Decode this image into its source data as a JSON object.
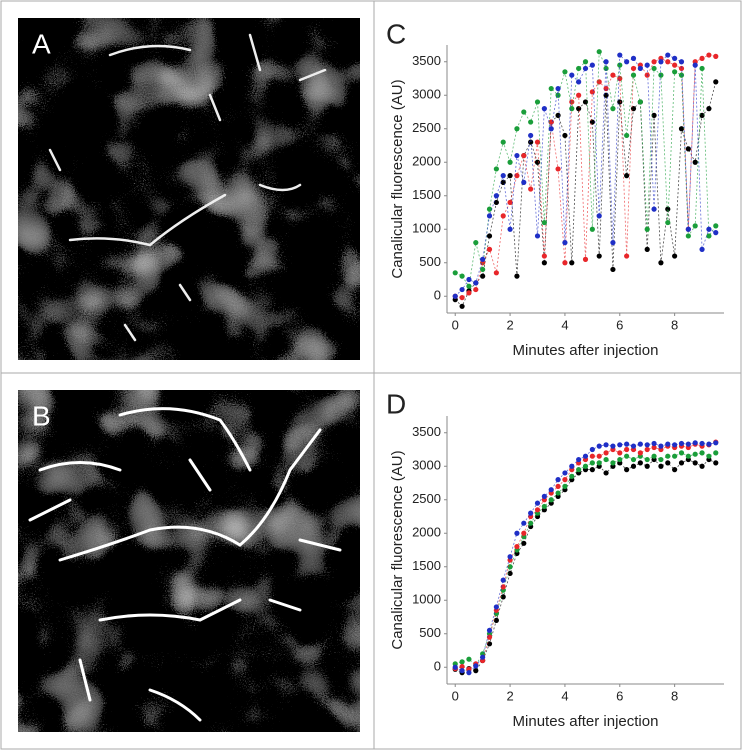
{
  "image_panels": [
    {
      "label": "A"
    },
    {
      "label": "B"
    }
  ],
  "chart_data": [
    {
      "type": "scatter",
      "label": "C",
      "xlabel": "Minutes after injection",
      "ylabel": "Canalicular fluorescence (AU)",
      "xlim": [
        -0.3,
        9.8
      ],
      "xticks": [
        0,
        2,
        4,
        6,
        8
      ],
      "ylim": [
        -250,
        3750
      ],
      "yticks": [
        0,
        500,
        1000,
        1500,
        2000,
        2500,
        3000,
        3500
      ],
      "connect_points": true,
      "x": [
        0,
        0.25,
        0.5,
        0.75,
        1,
        1.25,
        1.5,
        1.75,
        2,
        2.25,
        2.5,
        2.75,
        3,
        3.25,
        3.5,
        3.75,
        4,
        4.25,
        4.5,
        4.75,
        5,
        5.25,
        5.5,
        5.75,
        6,
        6.25,
        6.5,
        6.75,
        7,
        7.25,
        7.5,
        7.75,
        8,
        8.25,
        8.5,
        8.75,
        9,
        9.25,
        9.5
      ],
      "series": [
        {
          "color": "#000000",
          "values": [
            -50,
            -150,
            80,
            200,
            300,
            900,
            1400,
            1700,
            1800,
            300,
            2100,
            2300,
            2000,
            500,
            2600,
            2700,
            2400,
            500,
            2800,
            2900,
            2600,
            600,
            3000,
            400,
            2900,
            1800,
            2800,
            2900,
            700,
            2700,
            500,
            1300,
            600,
            2500,
            2200,
            2000,
            2700,
            2800,
            3200
          ]
        },
        {
          "color": "#e8262a",
          "values": [
            0,
            -20,
            50,
            100,
            500,
            700,
            350,
            1200,
            1400,
            1800,
            2100,
            1600,
            2300,
            600,
            2600,
            1900,
            500,
            2900,
            3000,
            550,
            3050,
            3200,
            3100,
            3300,
            3250,
            600,
            3400,
            3450,
            3300,
            3500,
            3550,
            3500,
            3450,
            3400,
            1000,
            3500,
            3550,
            3600,
            3580
          ]
        },
        {
          "color": "#1a9e3a",
          "values": [
            350,
            300,
            150,
            800,
            400,
            1300,
            1900,
            2300,
            2000,
            2500,
            2750,
            2600,
            2900,
            1100,
            3100,
            3000,
            3350,
            2800,
            3400,
            3500,
            1000,
            3650,
            3400,
            2800,
            3450,
            2400,
            3300,
            2900,
            1000,
            3400,
            3300,
            1100,
            3350,
            3300,
            900,
            1050,
            3400,
            900,
            1050
          ]
        },
        {
          "color": "#1f2fc6",
          "values": [
            0,
            100,
            250,
            200,
            550,
            1200,
            1500,
            1800,
            1000,
            2100,
            1700,
            2400,
            900,
            2800,
            2500,
            3100,
            800,
            3300,
            3200,
            3400,
            3450,
            1200,
            3500,
            800,
            3600,
            3500,
            3550,
            3400,
            3450,
            1300,
            3500,
            3600,
            3550,
            3500,
            1000,
            3450,
            700,
            1000,
            950
          ]
        }
      ]
    },
    {
      "type": "scatter",
      "label": "D",
      "xlabel": "Minutes after injection",
      "ylabel": "Canalicular fluorescence (AU)",
      "xlim": [
        -0.3,
        9.8
      ],
      "xticks": [
        0,
        2,
        4,
        6,
        8
      ],
      "ylim": [
        -250,
        3750
      ],
      "yticks": [
        0,
        500,
        1000,
        1500,
        2000,
        2500,
        3000,
        3500
      ],
      "connect_points": true,
      "x": [
        0,
        0.25,
        0.5,
        0.75,
        1,
        1.25,
        1.5,
        1.75,
        2,
        2.25,
        2.5,
        2.75,
        3,
        3.25,
        3.5,
        3.75,
        4,
        4.25,
        4.5,
        4.75,
        5,
        5.25,
        5.5,
        5.75,
        6,
        6.25,
        6.5,
        6.75,
        7,
        7.25,
        7.5,
        7.75,
        8,
        8.25,
        8.5,
        8.75,
        9,
        9.25,
        9.5
      ],
      "series": [
        {
          "color": "#000000",
          "values": [
            -30,
            -80,
            -20,
            -50,
            100,
            350,
            700,
            1050,
            1400,
            1700,
            1850,
            2100,
            2250,
            2350,
            2450,
            2550,
            2650,
            2800,
            2900,
            2950,
            2950,
            3000,
            2900,
            3000,
            3050,
            2950,
            3000,
            3050,
            3000,
            3100,
            3000,
            3050,
            2950,
            3050,
            3100,
            3050,
            3000,
            3100,
            3050
          ]
        },
        {
          "color": "#1a9e3a",
          "values": [
            50,
            80,
            120,
            30,
            200,
            500,
            800,
            1150,
            1500,
            1750,
            1950,
            2150,
            2300,
            2400,
            2500,
            2600,
            2700,
            2850,
            2950,
            3000,
            3050,
            3050,
            3100,
            3050,
            3100,
            3150,
            3100,
            3150,
            3100,
            3150,
            3100,
            3150,
            3150,
            3200,
            3150,
            3180,
            3200,
            3150,
            3200
          ]
        },
        {
          "color": "#e8262a",
          "values": [
            -20,
            10,
            -30,
            50,
            100,
            450,
            850,
            1200,
            1600,
            1800,
            2000,
            2250,
            2350,
            2500,
            2600,
            2700,
            2800,
            2950,
            3050,
            3100,
            3150,
            3150,
            3200,
            3250,
            3200,
            3250,
            3250,
            3200,
            3250,
            3280,
            3250,
            3300,
            3280,
            3300,
            3280,
            3330,
            3300,
            3320,
            3360
          ]
        },
        {
          "color": "#1f2fc6",
          "values": [
            0,
            -50,
            -80,
            20,
            150,
            550,
            900,
            1300,
            1650,
            2000,
            2150,
            2300,
            2450,
            2550,
            2650,
            2800,
            2900,
            3000,
            3100,
            3150,
            3250,
            3300,
            3320,
            3300,
            3320,
            3330,
            3300,
            3330,
            3320,
            3340,
            3300,
            3330,
            3320,
            3340,
            3330,
            3350,
            3340,
            3330,
            3350
          ]
        }
      ]
    }
  ]
}
